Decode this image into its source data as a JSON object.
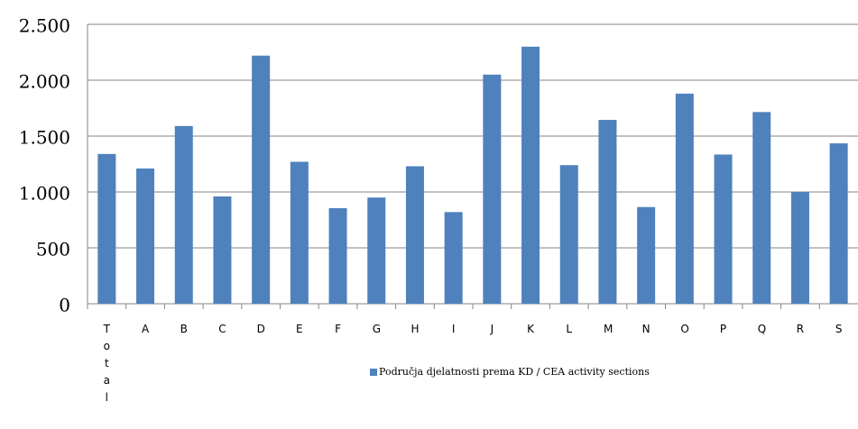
{
  "chart_data": {
    "type": "bar",
    "categories": [
      "Total",
      "A",
      "B",
      "C",
      "D",
      "E",
      "F",
      "G",
      "H",
      "I",
      "J",
      "K",
      "L",
      "M",
      "N",
      "O",
      "P",
      "Q",
      "R",
      "S"
    ],
    "series": [
      {
        "name": "Područja djelatnosti prema KD / CEA activity sections",
        "color": "#4f81bd",
        "values": [
          1340,
          1210,
          1590,
          960,
          2220,
          1270,
          855,
          950,
          1230,
          820,
          2050,
          2300,
          1240,
          1645,
          865,
          1880,
          1335,
          1715,
          1000,
          1435
        ]
      }
    ],
    "ylim": [
      0,
      2500
    ],
    "yticks": [
      0,
      500,
      {
        "value": 1000,
        "label": "1.000"
      },
      {
        "value": 1500,
        "label": "1.500"
      },
      {
        "value": 2000,
        "label": "2.000"
      },
      {
        "value": 2500,
        "label": "2.500"
      }
    ],
    "grid": true,
    "legend": "bottom"
  }
}
